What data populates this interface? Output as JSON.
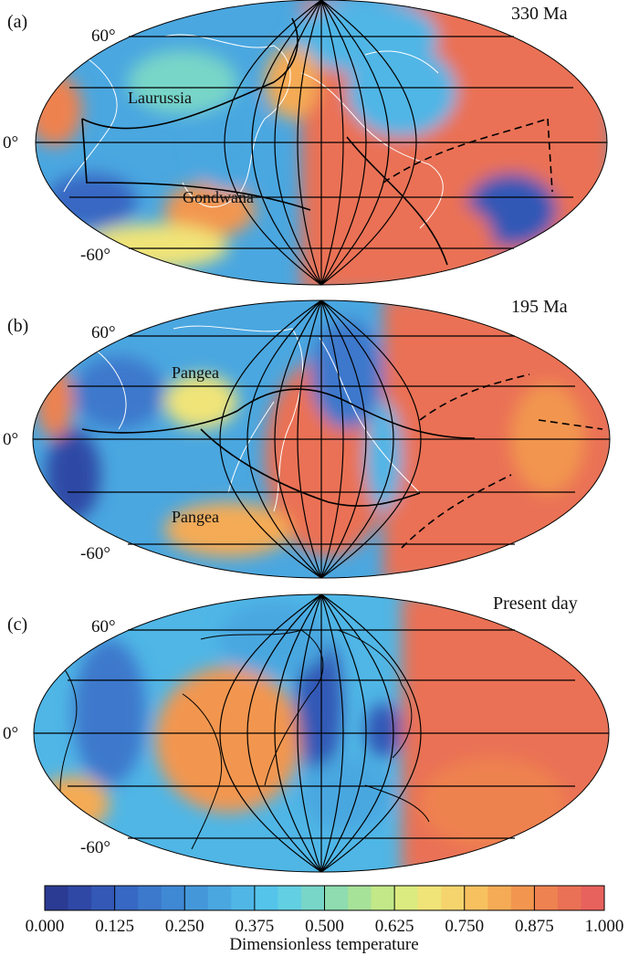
{
  "panels": [
    {
      "id": "a",
      "letter": "(a)",
      "age": "330 Ma",
      "lat_labels": [
        "60°",
        "0°",
        "-60°"
      ],
      "regions": [
        "Laurussia",
        "Gondwana"
      ],
      "coastline_color": "#ffffff"
    },
    {
      "id": "b",
      "letter": "(b)",
      "age": "195 Ma",
      "lat_labels": [
        "60°",
        "0°",
        "-60°"
      ],
      "regions": [
        "Pangea",
        "Pangea"
      ],
      "coastline_color": "#ffffff"
    },
    {
      "id": "c",
      "letter": "(c)",
      "age": "Present day",
      "lat_labels": [
        "60°",
        "0°",
        "-60°"
      ],
      "regions": [],
      "coastline_color": "#000000"
    }
  ],
  "colorbar": {
    "label": "Dimensionless temperature",
    "ticks": [
      "0.000",
      "0.125",
      "0.250",
      "0.375",
      "0.500",
      "0.625",
      "0.750",
      "0.875",
      "1.000"
    ],
    "colors": [
      "#2b3b93",
      "#2f48a5",
      "#3358b6",
      "#3768c3",
      "#3c78cc",
      "#3f88d4",
      "#4498da",
      "#4aa7e0",
      "#4fb6e6",
      "#55c4ea",
      "#63cfe2",
      "#78d6c8",
      "#8edcaf",
      "#a7e299",
      "#c2e888",
      "#dceb7f",
      "#f0e478",
      "#f6d46d",
      "#f7c160",
      "#f5ab55",
      "#f2964f",
      "#ee8250",
      "#ea7155",
      "#e7625c"
    ]
  },
  "map_fields": {
    "a": {
      "hot_side": "east",
      "cold_spots": [
        "north-center",
        "southwest",
        "southeast"
      ]
    },
    "b": {
      "hot_side": "east",
      "cold_spots": [
        "north-center",
        "west"
      ]
    },
    "c": {
      "hot_side": "east-and-africa",
      "cold_spots": [
        "asia",
        "americas"
      ]
    }
  }
}
